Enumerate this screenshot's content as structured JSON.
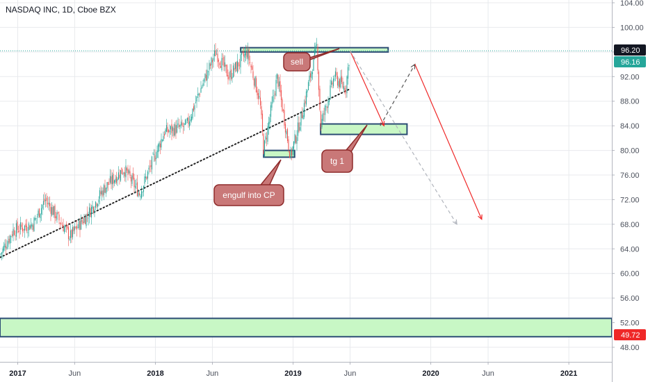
{
  "header": {
    "title": "NASDAQ INC, 1D, Cboe BZX"
  },
  "chart_data": {
    "type": "candlestick",
    "symbol": "NASDAQ INC",
    "interval": "1D",
    "source": "Cboe BZX",
    "y_ticks": [
      48,
      52,
      56,
      60,
      64,
      68,
      72,
      76,
      80,
      84,
      88,
      92,
      96,
      100,
      104
    ],
    "y_tick_labels": [
      "48.00",
      "52.00",
      "56.00",
      "60.00",
      "64.00",
      "68.00",
      "72.00",
      "76.00",
      "80.00",
      "84.00",
      "88.00",
      "92.00",
      "96.00",
      "100.00",
      "104.00"
    ],
    "ylim": [
      47,
      104.5
    ],
    "x_ticks": [
      {
        "label": "2017",
        "date": "2017-01-01",
        "bold": true
      },
      {
        "label": "Jun",
        "date": "2017-06-01",
        "bold": false
      },
      {
        "label": "2018",
        "date": "2018-01-01",
        "bold": true
      },
      {
        "label": "Jun",
        "date": "2018-06-01",
        "bold": false
      },
      {
        "label": "2019",
        "date": "2019-01-01",
        "bold": true
      },
      {
        "label": "Jun",
        "date": "2019-06-01",
        "bold": false
      },
      {
        "label": "2020",
        "date": "2020-01-01",
        "bold": true
      },
      {
        "label": "Jun",
        "date": "2020-06-01",
        "bold": false
      },
      {
        "label": "2021",
        "date": "2021-01-01",
        "bold": true
      }
    ],
    "xlim": [
      "2016-11-15",
      "2021-04-25"
    ],
    "price_path": [
      [
        "2016-11-15",
        63
      ],
      [
        "2016-12-20",
        67
      ],
      [
        "2017-02-10",
        68
      ],
      [
        "2017-03-15",
        72
      ],
      [
        "2017-05-20",
        66
      ],
      [
        "2017-07-10",
        70
      ],
      [
        "2017-08-20",
        74
      ],
      [
        "2017-10-10",
        77
      ],
      [
        "2017-11-20",
        73
      ],
      [
        "2018-01-25",
        83
      ],
      [
        "2018-03-25",
        84
      ],
      [
        "2018-05-01",
        90
      ],
      [
        "2018-06-10",
        96
      ],
      [
        "2018-07-15",
        92
      ],
      [
        "2018-09-01",
        96
      ],
      [
        "2018-10-05",
        88
      ],
      [
        "2018-10-15",
        80
      ],
      [
        "2018-11-20",
        92
      ],
      [
        "2018-12-25",
        79
      ],
      [
        "2019-01-25",
        86
      ],
      [
        "2019-03-05",
        97
      ],
      [
        "2019-03-15",
        84
      ],
      [
        "2019-04-20",
        92
      ],
      [
        "2019-05-20",
        90
      ],
      [
        "2019-06-01",
        96.2
      ]
    ],
    "last_close": 96.16,
    "price_labels": [
      {
        "value": 96.2,
        "text": "96.20",
        "color": "#131722"
      },
      {
        "value": 96.16,
        "text": "96.16",
        "color": "#26a69a"
      },
      {
        "value": 49.72,
        "text": "49.72",
        "color": "#ef2828"
      }
    ],
    "horizontal_line": {
      "value": 96.2,
      "color": "#26a69a"
    },
    "zones": [
      {
        "from": "2018-08-15",
        "to": "2019-09-10",
        "top": 96.7,
        "bottom": 96.0
      },
      {
        "from": "2018-10-15",
        "to": "2019-01-05",
        "top": 80.0,
        "bottom": 78.9
      },
      {
        "from": "2019-03-15",
        "to": "2019-10-30",
        "top": 84.3,
        "bottom": 82.6
      },
      {
        "from": "2016-11-15",
        "to": "2021-04-25",
        "top": 52.7,
        "bottom": 49.72
      }
    ],
    "support_line": {
      "from": [
        "2016-11-15",
        62.6
      ],
      "to": [
        "2019-06-01",
        90.0
      ]
    },
    "annotations": [
      {
        "text": "sell",
        "color": "#c97878"
      },
      {
        "text": "tg 1",
        "color": "#c97878"
      },
      {
        "text": "engulf into CP",
        "color": "#c97878"
      }
    ],
    "arrows": [
      {
        "from": [
          "2019-06-01",
          96.2
        ],
        "to": [
          "2019-08-30",
          84.0
        ],
        "color": "#ef2828",
        "style": "solid"
      },
      {
        "from": [
          "2019-06-01",
          96.2
        ],
        "to": [
          "2020-03-10",
          68.0
        ],
        "color": "#b0b4bc",
        "style": "dashed"
      },
      {
        "from": [
          "2019-08-20",
          84.0
        ],
        "to": [
          "2019-11-20",
          94.0
        ],
        "color": "#555555",
        "style": "dashed"
      },
      {
        "from": [
          "2019-11-20",
          94.0
        ],
        "to": [
          "2020-05-15",
          68.8
        ],
        "color": "#ef2828",
        "style": "solid"
      }
    ],
    "colors": {
      "up": "#26a69a",
      "down": "#ef5350",
      "zone_fill": "#c8f7c5",
      "zone_border": "#2a4b73",
      "grid": "#e8eaed"
    }
  }
}
